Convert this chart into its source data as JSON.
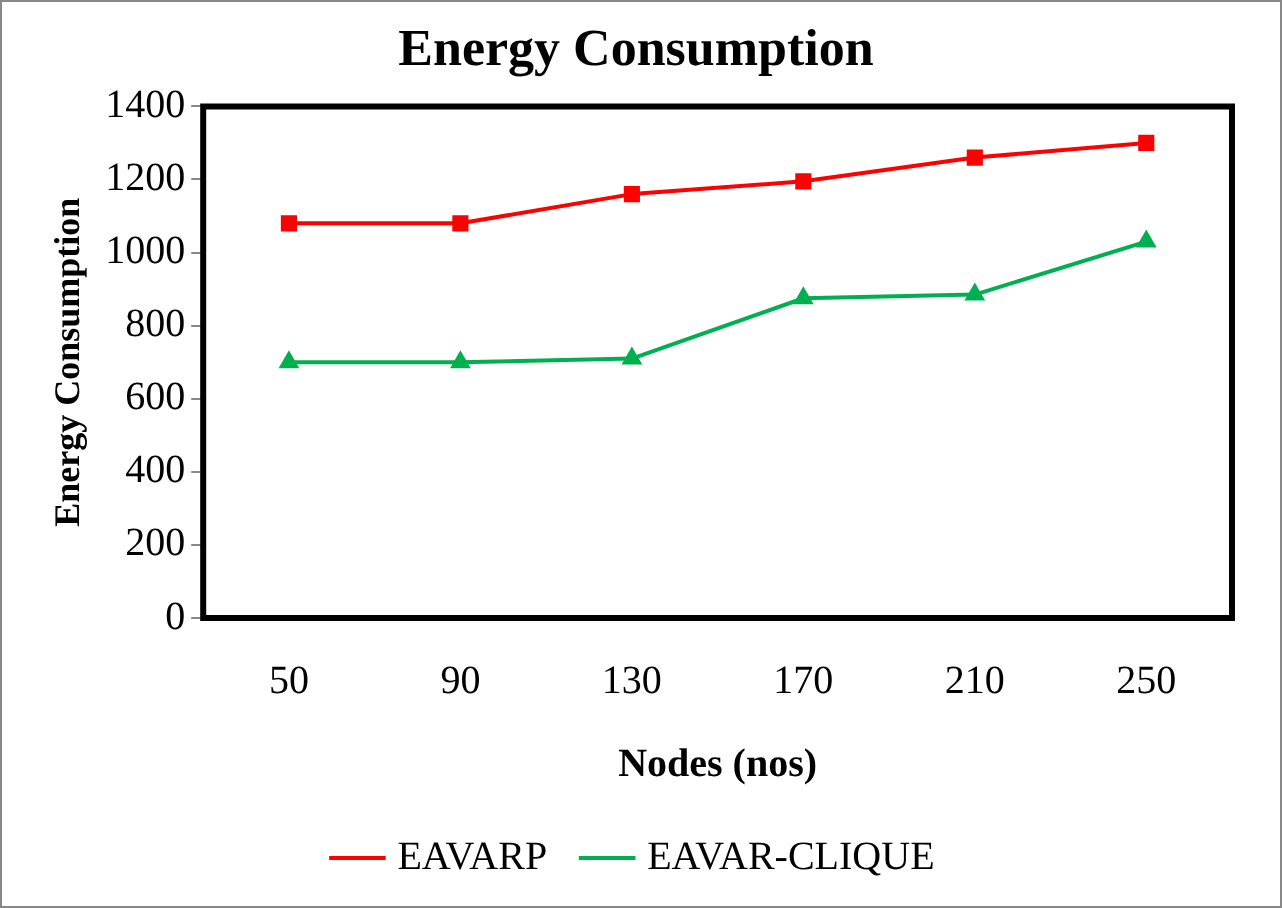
{
  "chart_data": {
    "type": "line",
    "title": "Energy Consumption",
    "xlabel": "Nodes (nos)",
    "ylabel": "Energy Consumption",
    "categories": [
      "50",
      "90",
      "130",
      "170",
      "210",
      "250"
    ],
    "series": [
      {
        "name": "EAVARP",
        "color": "#ff0000",
        "marker": "square",
        "values": [
          1080,
          1080,
          1160,
          1195,
          1260,
          1300
        ]
      },
      {
        "name": "EAVAR-CLIQUE",
        "color": "#00b050",
        "marker": "triangle",
        "values": [
          700,
          700,
          710,
          875,
          885,
          1030
        ]
      }
    ],
    "ylim": [
      0,
      1400
    ],
    "yticks": [
      0,
      200,
      400,
      600,
      800,
      1000,
      1200,
      1400
    ],
    "grid": false,
    "legend": "bottom"
  }
}
